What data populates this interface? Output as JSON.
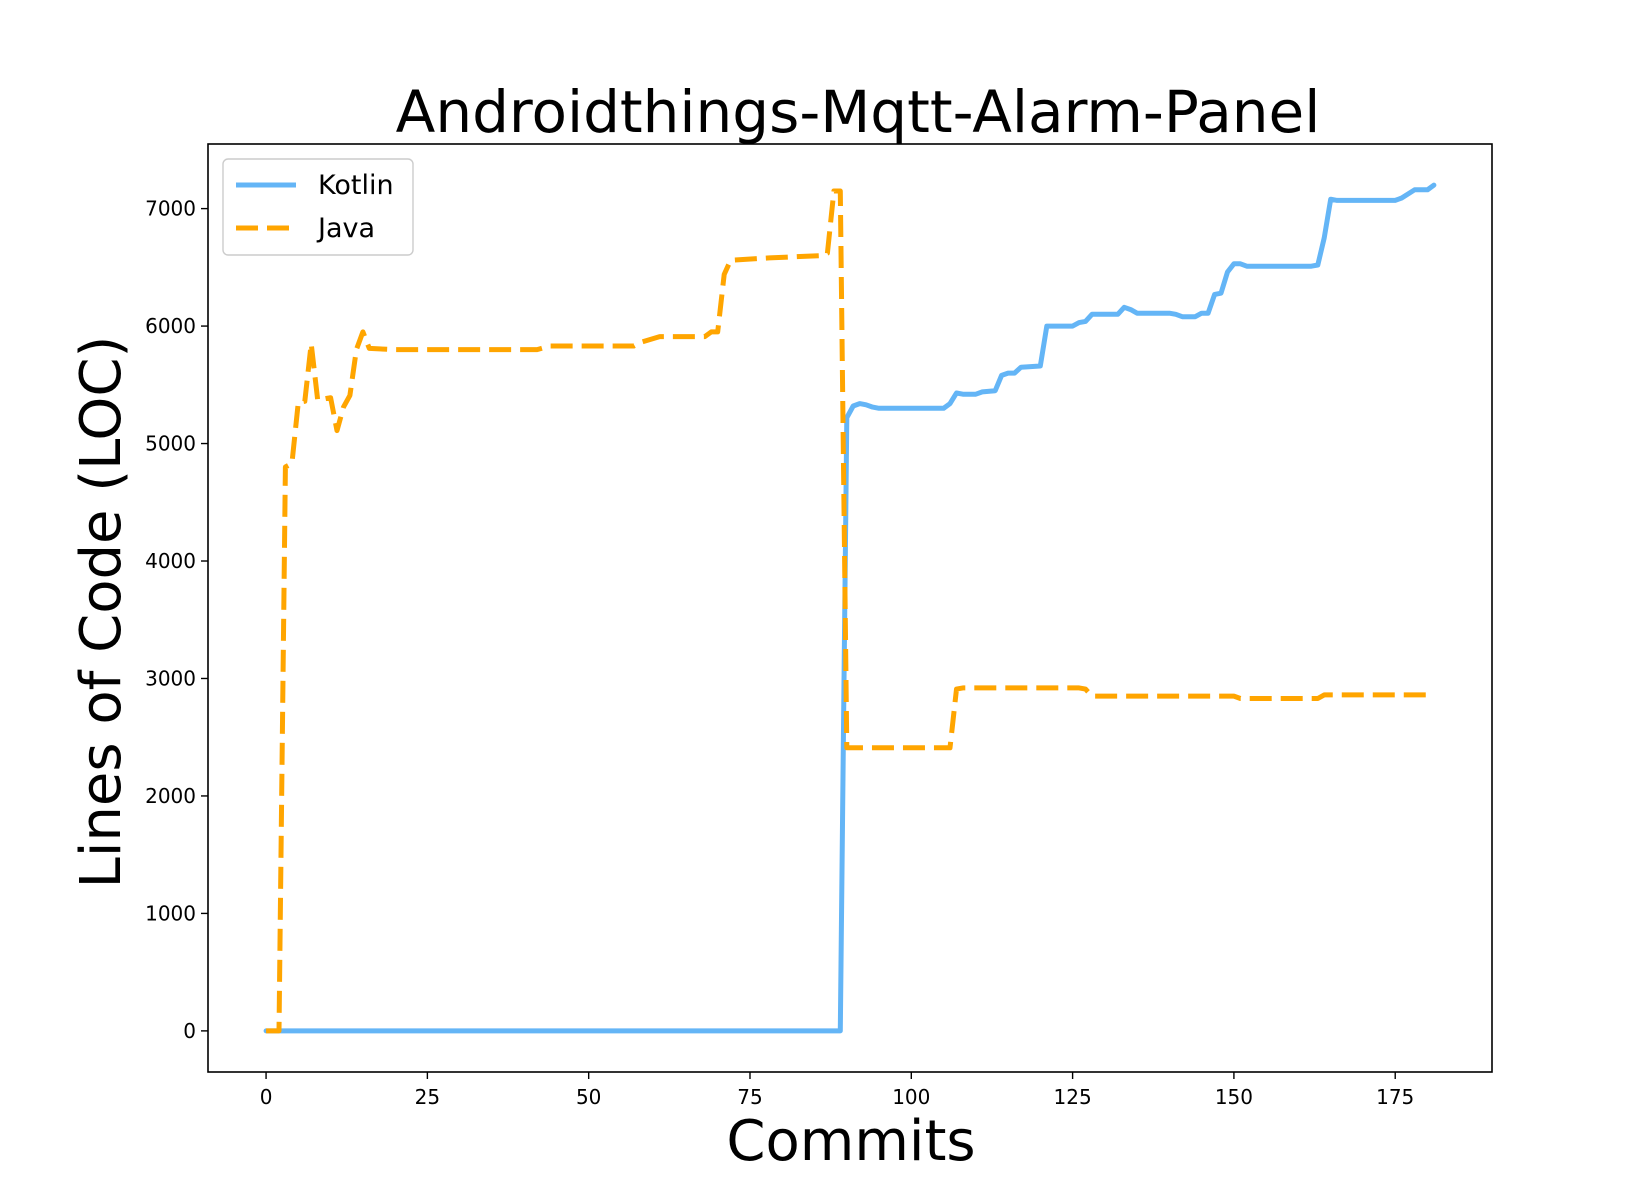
{
  "chart_data": {
    "type": "line",
    "title": "Androidthings-Mqtt-Alarm-Panel",
    "xlabel": "Commits",
    "ylabel": "Lines of Code (LOC)",
    "xlim": [
      -9,
      190
    ],
    "ylim": [
      -350,
      7550
    ],
    "xticks": [
      0,
      25,
      50,
      75,
      100,
      125,
      150,
      175
    ],
    "yticks": [
      0,
      1000,
      2000,
      3000,
      4000,
      5000,
      6000,
      7000
    ],
    "grid": false,
    "legend": "top-left",
    "series": [
      {
        "name": "Kotlin",
        "color": "#64b5f6",
        "style": "solid",
        "points": [
          [
            0,
            0
          ],
          [
            89,
            0
          ],
          [
            90,
            5220
          ],
          [
            91,
            5320
          ],
          [
            92,
            5340
          ],
          [
            93,
            5330
          ],
          [
            94,
            5310
          ],
          [
            95,
            5300
          ],
          [
            100,
            5300
          ],
          [
            105,
            5300
          ],
          [
            106,
            5340
          ],
          [
            107,
            5430
          ],
          [
            108,
            5420
          ],
          [
            110,
            5420
          ],
          [
            111,
            5440
          ],
          [
            113,
            5450
          ],
          [
            114,
            5580
          ],
          [
            115,
            5600
          ],
          [
            116,
            5600
          ],
          [
            117,
            5650
          ],
          [
            120,
            5660
          ],
          [
            121,
            6000
          ],
          [
            125,
            6000
          ],
          [
            126,
            6030
          ],
          [
            127,
            6040
          ],
          [
            128,
            6100
          ],
          [
            132,
            6100
          ],
          [
            133,
            6160
          ],
          [
            134,
            6140
          ],
          [
            135,
            6110
          ],
          [
            140,
            6110
          ],
          [
            141,
            6100
          ],
          [
            142,
            6080
          ],
          [
            144,
            6080
          ],
          [
            145,
            6110
          ],
          [
            146,
            6110
          ],
          [
            147,
            6270
          ],
          [
            148,
            6280
          ],
          [
            149,
            6460
          ],
          [
            150,
            6530
          ],
          [
            151,
            6530
          ],
          [
            152,
            6510
          ],
          [
            162,
            6510
          ],
          [
            163,
            6520
          ],
          [
            164,
            6750
          ],
          [
            165,
            7080
          ],
          [
            166,
            7070
          ],
          [
            175,
            7070
          ],
          [
            176,
            7090
          ],
          [
            178,
            7160
          ],
          [
            180,
            7160
          ],
          [
            181,
            7200
          ]
        ]
      },
      {
        "name": "Java",
        "color": "#ffa500",
        "style": "dashed",
        "points": [
          [
            0,
            0
          ],
          [
            2,
            0
          ],
          [
            3,
            4800
          ],
          [
            4,
            4830
          ],
          [
            5,
            5350
          ],
          [
            6,
            5360
          ],
          [
            7,
            5850
          ],
          [
            8,
            5370
          ],
          [
            10,
            5390
          ],
          [
            11,
            5110
          ],
          [
            12,
            5310
          ],
          [
            13,
            5410
          ],
          [
            14,
            5800
          ],
          [
            15,
            5950
          ],
          [
            16,
            5810
          ],
          [
            20,
            5800
          ],
          [
            30,
            5800
          ],
          [
            42,
            5800
          ],
          [
            44,
            5830
          ],
          [
            57,
            5830
          ],
          [
            58,
            5860
          ],
          [
            61,
            5910
          ],
          [
            68,
            5910
          ],
          [
            69,
            5950
          ],
          [
            70,
            5950
          ],
          [
            71,
            6440
          ],
          [
            72,
            6560
          ],
          [
            78,
            6580
          ],
          [
            86,
            6600
          ],
          [
            87,
            6620
          ],
          [
            88,
            7150
          ],
          [
            89,
            7150
          ],
          [
            90,
            2410
          ],
          [
            91,
            2410
          ],
          [
            106,
            2410
          ],
          [
            107,
            2910
          ],
          [
            108,
            2920
          ],
          [
            126,
            2920
          ],
          [
            127,
            2910
          ],
          [
            128,
            2850
          ],
          [
            150,
            2850
          ],
          [
            151,
            2830
          ],
          [
            163,
            2830
          ],
          [
            164,
            2860
          ],
          [
            181,
            2860
          ]
        ]
      }
    ]
  }
}
